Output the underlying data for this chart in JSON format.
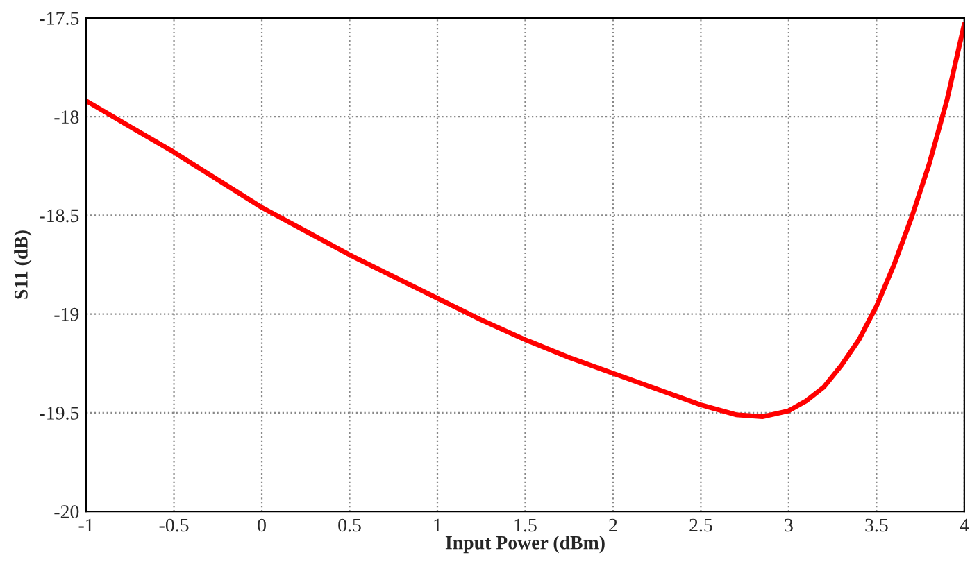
{
  "chart_data": {
    "type": "line",
    "xlabel": "Input Power (dBm)",
    "ylabel": "S11 (dB)",
    "series": [
      {
        "color": "#ff0000",
        "x": [
          -1,
          -0.75,
          -0.5,
          -0.25,
          0,
          0.25,
          0.5,
          0.75,
          1,
          1.25,
          1.5,
          1.75,
          2,
          2.25,
          2.5,
          2.7,
          2.85,
          3,
          3.1,
          3.2,
          3.3,
          3.4,
          3.5,
          3.6,
          3.7,
          3.8,
          3.9,
          4
        ],
        "values": [
          -17.92,
          -18.05,
          -18.18,
          -18.32,
          -18.46,
          -18.58,
          -18.7,
          -18.81,
          -18.92,
          -19.03,
          -19.13,
          -19.22,
          -19.3,
          -19.38,
          -19.46,
          -19.51,
          -19.52,
          -19.49,
          -19.44,
          -19.37,
          -19.26,
          -19.13,
          -18.96,
          -18.75,
          -18.51,
          -18.24,
          -17.92,
          -17.53
        ]
      }
    ],
    "xlim": [
      -1,
      4
    ],
    "ylim": [
      -20,
      -17.5
    ],
    "xticks": [
      -1,
      -0.5,
      0,
      0.5,
      1,
      1.5,
      2,
      2.5,
      3,
      3.5,
      4
    ],
    "yticks": [
      -20,
      -19.5,
      -19,
      -18.5,
      -18,
      -17.5
    ],
    "grid": true,
    "marker": "none",
    "line_style": "solid"
  }
}
